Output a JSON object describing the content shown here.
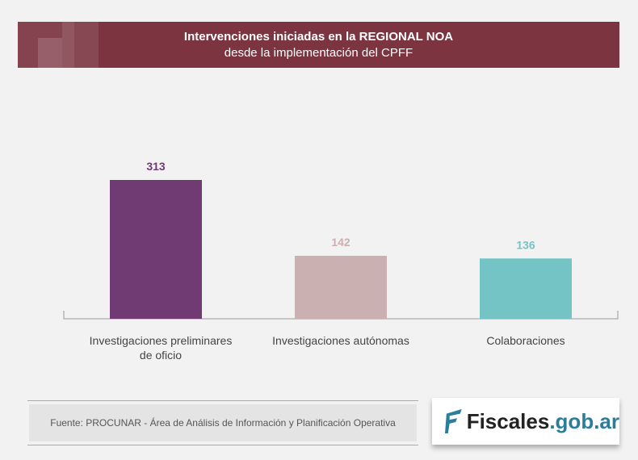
{
  "chart_data": {
    "type": "bar",
    "title": "Intervenciones iniciadas en la REGIONAL NOA",
    "subtitle": "desde la implementación del CPFF",
    "categories": [
      "Investigaciones preliminares de oficio",
      "Investigaciones autónomas",
      "Colaboraciones"
    ],
    "values": [
      313,
      142,
      136
    ],
    "colors": [
      "#703a72",
      "#cbb0b2",
      "#74c4c6"
    ],
    "ylim": [
      0,
      313
    ],
    "grid": false,
    "xlabel": "",
    "ylabel": ""
  },
  "footer": {
    "source": "Fuente: PROCUNAR - Área de Análisis de Información y Planificación Operativa",
    "logo_main": "Fiscales",
    "logo_domain": ".gob.ar"
  }
}
